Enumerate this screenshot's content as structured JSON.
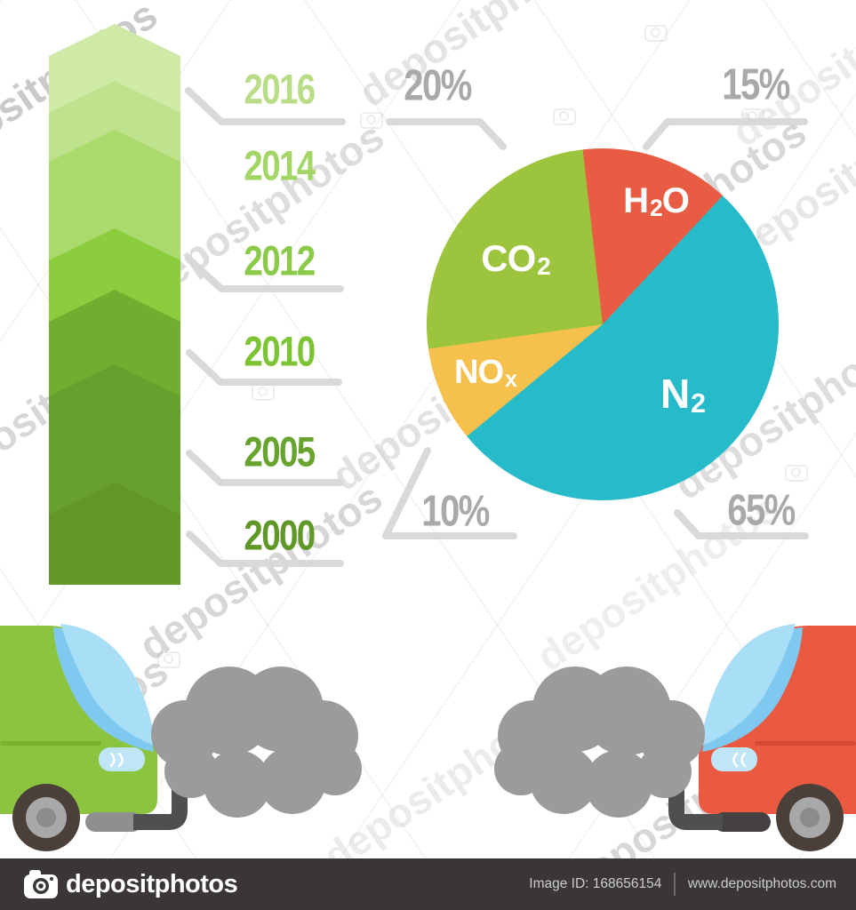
{
  "page": {
    "background": "#ffffff"
  },
  "watermark": {
    "text": "depositphotos"
  },
  "footer": {
    "brand": "depositphotos",
    "image_id": "Image ID: 168656154",
    "website": "www.depositphotos.com"
  },
  "colors": {
    "car_green": "#8bc53f",
    "car_red": "#ea5a41",
    "crease_green": "#79b22e",
    "crease_red": "#d34a35",
    "window_blue": "#a9def7",
    "window_blue_dark": "#7fc9f0",
    "lamp_blue": "#bfe6f8",
    "smoke_gray": "#9b9b9b",
    "wheel_dark": "#4a4039",
    "wheel_rim": "#a8a8a8",
    "wheel_hub": "#8b8b8b",
    "pipe_dark": "#4f4f4f",
    "muffler_gray": "#8f8f8f",
    "muffler_dark": "#454142",
    "footer_bg": "#3a3637",
    "footer_text": "#cccccc",
    "callout_gray": "#a9a9a9",
    "line_gray": "#d9d9d9",
    "watermark_gray": "#7d7d7d"
  },
  "cars": {
    "left": {
      "color_key": "car_green",
      "exhaust": "smoke-cloud"
    },
    "right": {
      "color_key": "car_red",
      "exhaust": "smoke-cloud"
    }
  },
  "chart_data": [
    {
      "type": "pie",
      "unit": "%",
      "labels_position": "inside",
      "legend": "none",
      "slices": [
        {
          "label": "H2O",
          "parts": [
            {
              "t": "H",
              "sub": false
            },
            {
              "t": "2",
              "sub": true
            },
            {
              "t": "O",
              "sub": false
            }
          ],
          "value": 15,
          "color": "#e95c44"
        },
        {
          "label": "N2",
          "parts": [
            {
              "t": "N",
              "sub": false
            },
            {
              "t": "2",
              "sub": true
            }
          ],
          "value": 65,
          "color": "#27bac9"
        },
        {
          "label": "NOx",
          "parts": [
            {
              "t": "NO",
              "sub": false
            },
            {
              "t": "x",
              "sub": true
            }
          ],
          "value": 10,
          "color": "#f5c04c"
        },
        {
          "label": "CO2",
          "parts": [
            {
              "t": "CO",
              "sub": false
            },
            {
              "t": "2",
              "sub": true
            }
          ],
          "value": 20,
          "color": "#9cc43c"
        }
      ]
    },
    {
      "type": "bar",
      "subtype": "timeline-arrow",
      "orientation": "vertical",
      "categories": [
        "2016",
        "2014",
        "2012",
        "2010",
        "2005",
        "2000"
      ],
      "label_colors": [
        "#b8dd86",
        "#a3d666",
        "#8bca49",
        "#7cc433",
        "#67a42e",
        "#5f9827"
      ],
      "band_colors": [
        "#cfe9a7",
        "#bfe28c",
        "#a9da6b",
        "#8ccd3e",
        "#6fae2f",
        "#67a02c",
        "#639829"
      ]
    }
  ]
}
